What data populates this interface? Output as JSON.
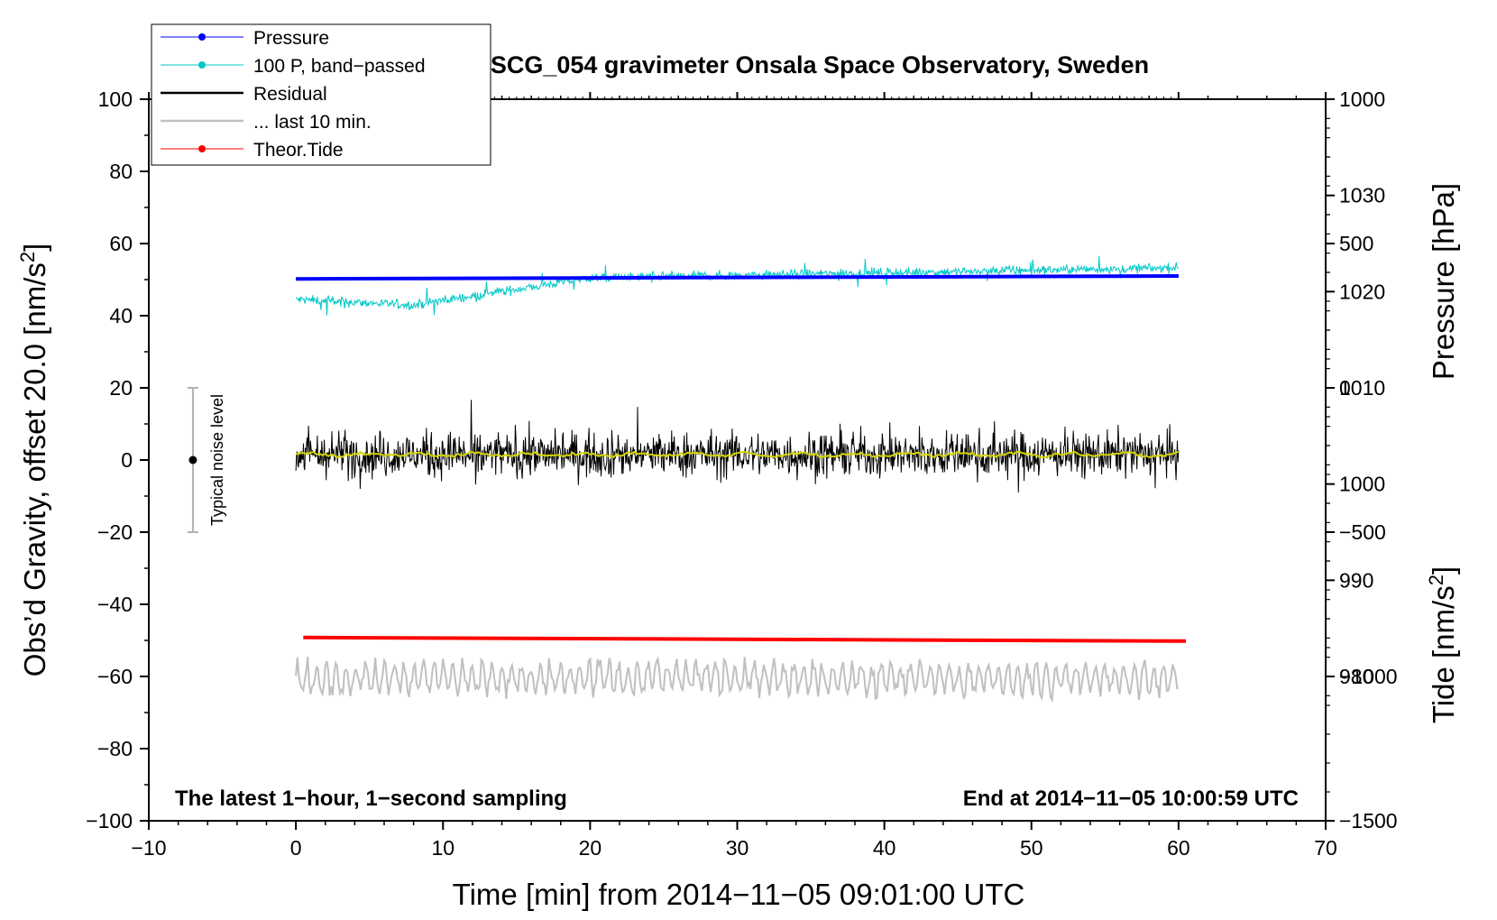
{
  "chart_data": {
    "type": "line",
    "title": "SCG_054 gravimeter Onsala Space Observatory, Sweden",
    "xlabel": "Time [min] from 2014−11−05 09:01:00 UTC",
    "ylabel_left": "Obs’d Gravity, offset 20.0 [nm/s",
    "ylabel_left_sup": "2",
    "ylabel_left_end": "]",
    "ylabel_right_pressure": "Pressure [hPa]",
    "ylabel_right_tide": "Tide [nm/s",
    "ylabel_right_tide_sup": "2",
    "ylabel_right_tide_end": "]",
    "xlim": [
      -10,
      70
    ],
    "ylim": [
      -100,
      100
    ],
    "x_ticks": [
      -10,
      0,
      10,
      20,
      30,
      40,
      50,
      60,
      70
    ],
    "x_tick_labels": [
      "−10",
      "0",
      "10",
      "20",
      "30",
      "40",
      "50",
      "60",
      "70"
    ],
    "y_ticks": [
      -100,
      -80,
      -60,
      -40,
      -20,
      0,
      20,
      40,
      60,
      80,
      100
    ],
    "y_tick_labels": [
      "−100",
      "−80",
      "−60",
      "−40",
      "−20",
      "0",
      "20",
      "40",
      "60",
      "80",
      "100"
    ],
    "pressure_axis": {
      "range": [
        965,
        1040
      ],
      "ticks": [
        980,
        990,
        1000,
        1010,
        1020,
        1030
      ],
      "tick_labels": [
        "980",
        "990",
        "1000",
        "1010",
        "1020",
        "1030"
      ]
    },
    "tide_axis": {
      "range": [
        -1500,
        1000
      ],
      "ticks": [
        -1500,
        -1000,
        -500,
        0,
        500,
        1000
      ],
      "tick_labels": [
        "−1500",
        "−1000",
        "−500",
        "0",
        "500",
        "1000"
      ]
    },
    "legend": [
      {
        "label": "Pressure",
        "color": "#0000ff",
        "marker": true
      },
      {
        "label": "100 P, band−passed",
        "color": "#00c8c8",
        "marker": true
      },
      {
        "label": "Residual",
        "color": "#000000",
        "marker": false
      },
      {
        "label": "... last 10 min.",
        "color": "#c0c0c0",
        "marker": false
      },
      {
        "label": "Theor.Tide",
        "color": "#ff0000",
        "marker": true
      }
    ],
    "series": [
      {
        "name": "Pressure",
        "axis": "left",
        "color": "#0000ff",
        "x_range": [
          0,
          60
        ],
        "y_start": 50.2,
        "y_end": 51.0
      },
      {
        "name": "100 P, band−passed",
        "axis": "left",
        "color": "#00c8c8",
        "x_range": [
          0,
          60
        ],
        "y_start": 44.5,
        "y_end": 53.5,
        "noise": 1.5
      },
      {
        "name": "Residual",
        "axis": "left",
        "color": "#000000",
        "x_range": [
          0,
          60
        ],
        "mean": 1.5,
        "noise": 4.5
      },
      {
        "name": "Residual smoothed",
        "axis": "left",
        "color": "#d4d400",
        "x_range": [
          0,
          60
        ],
        "mean": 1.5
      },
      {
        "name": "... last 10 min.",
        "axis": "left",
        "color": "#c0c0c0",
        "x_range": [
          0,
          60
        ],
        "mean": -60.5,
        "noise": 4
      },
      {
        "name": "Theor.Tide",
        "axis": "left",
        "color": "#ff0000",
        "x_range": [
          0.5,
          60.5
        ],
        "y_start": -49.2,
        "y_end": -50.2
      }
    ],
    "noise_level": {
      "label": "Typical noise level",
      "x": -7,
      "center": 0,
      "low": -20,
      "high": 20
    },
    "annotations": {
      "left": "The latest 1−hour, 1−second sampling",
      "right": "End at 2014−11−05 10:00:59 UTC"
    },
    "colors": {
      "pressure": "#0000ff",
      "bandpassed": "#00c8c8",
      "residual": "#000000",
      "smoothed": "#d4d400",
      "last10": "#c0c0c0",
      "tide": "#ff0000",
      "noise_bar": "#b0b0b0"
    }
  }
}
